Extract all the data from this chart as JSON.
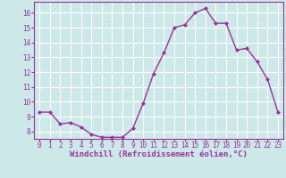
{
  "x": [
    0,
    1,
    2,
    3,
    4,
    5,
    6,
    7,
    8,
    9,
    10,
    11,
    12,
    13,
    14,
    15,
    16,
    17,
    18,
    19,
    20,
    21,
    22,
    23
  ],
  "y": [
    9.3,
    9.3,
    8.5,
    8.6,
    8.3,
    7.8,
    7.6,
    7.6,
    7.6,
    8.2,
    9.9,
    11.9,
    13.3,
    15.0,
    15.2,
    16.0,
    16.3,
    15.3,
    15.3,
    13.5,
    13.6,
    12.7,
    11.5,
    9.3
  ],
  "line_color": "#993399",
  "marker": "D",
  "marker_size": 2.0,
  "bg_color": "#cce8e8",
  "grid_color": "#ffffff",
  "xlabel": "Windchill (Refroidissement éolien,°C)",
  "xlim": [
    -0.5,
    23.5
  ],
  "ylim": [
    7.5,
    16.75
  ],
  "yticks": [
    8,
    9,
    10,
    11,
    12,
    13,
    14,
    15,
    16
  ],
  "xticks": [
    0,
    1,
    2,
    3,
    4,
    5,
    6,
    7,
    8,
    9,
    10,
    11,
    12,
    13,
    14,
    15,
    16,
    17,
    18,
    19,
    20,
    21,
    22,
    23
  ],
  "tick_fontsize": 5.5,
  "xlabel_fontsize": 6.5,
  "linewidth": 1.0
}
